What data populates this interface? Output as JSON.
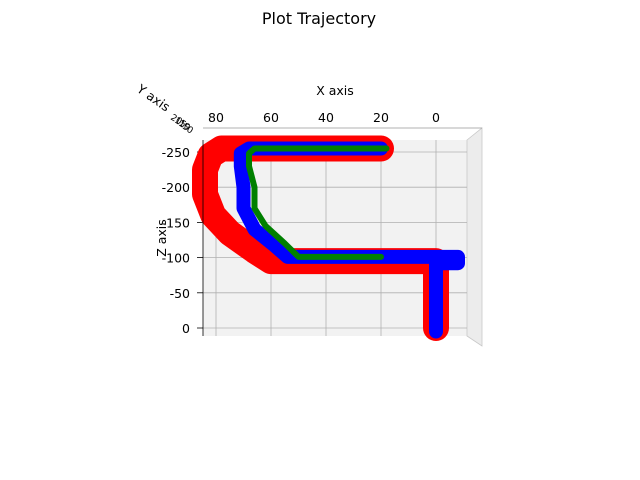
{
  "chart_data": {
    "type": "line",
    "title": "Plot Trajectory",
    "xlabel": "X axis",
    "ylabel": "Y axis",
    "zlabel": "Z axis",
    "x_ticks": [
      80,
      60,
      40,
      20,
      0
    ],
    "y_ticks": [
      20,
      15,
      10,
      5,
      0
    ],
    "z_ticks": [
      -250,
      -200,
      -150,
      -100,
      -50,
      0
    ],
    "xlim": [
      90,
      -15
    ],
    "zlim": [
      -265,
      20
    ],
    "grid": true,
    "colors": {
      "pane": "#f2f2f2",
      "grid": "#b0b0b0"
    },
    "series": [
      {
        "color": "#ff0000",
        "width": 26,
        "points": [
          [
            20,
            -255
          ],
          [
            78,
            -255
          ],
          [
            82,
            -245
          ],
          [
            84,
            -225
          ],
          [
            84,
            -190
          ],
          [
            81,
            -160
          ],
          [
            75,
            -135
          ],
          [
            66,
            -110
          ],
          [
            60,
            -95
          ],
          [
            0,
            -95
          ],
          [
            0,
            0
          ]
        ]
      },
      {
        "color": "#0000ff",
        "width": 14,
        "points": [
          [
            20,
            -255
          ],
          [
            68,
            -255
          ],
          [
            71,
            -248
          ],
          [
            71,
            -230
          ],
          [
            70,
            -200
          ],
          [
            70,
            -170
          ],
          [
            66,
            -140
          ],
          [
            59,
            -118
          ],
          [
            54,
            -101
          ],
          [
            -8,
            -101
          ],
          [
            -8,
            -92
          ],
          [
            0,
            -92
          ],
          [
            0,
            5
          ]
        ]
      },
      {
        "color": "#008000",
        "width": 6,
        "points": [
          [
            18,
            -255
          ],
          [
            66,
            -255
          ],
          [
            68,
            -248
          ],
          [
            68,
            -230
          ],
          [
            66,
            -200
          ],
          [
            66,
            -170
          ],
          [
            62,
            -145
          ],
          [
            55,
            -120
          ],
          [
            50,
            -101
          ],
          [
            20,
            -101
          ]
        ]
      }
    ]
  }
}
